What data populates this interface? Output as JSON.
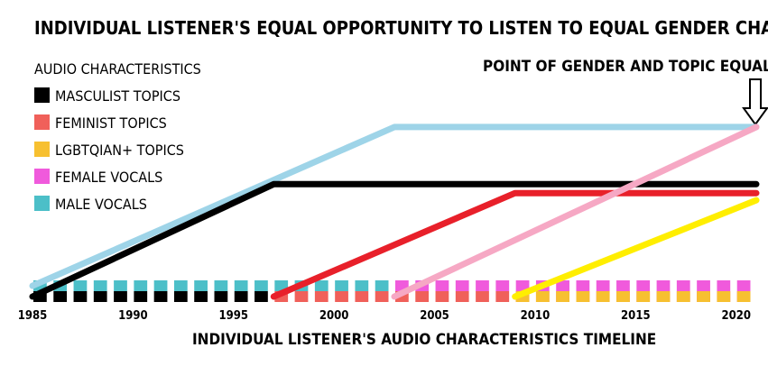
{
  "chart_data": {
    "type": "line",
    "title": "INDIVIDUAL LISTENER'S EQUAL OPPORTUNITY TO LISTEN TO EQUAL GENDER CHARACTERISTICS",
    "xlabel": "INDIVIDUAL LISTENER'S AUDIO CHARACTERISTICS TIMELINE",
    "ylabel": "",
    "xlim": [
      1985,
      2021
    ],
    "ylim": [
      0,
      10
    ],
    "x_ticks": [
      "1985",
      "1990",
      "1995",
      "2000",
      "2005",
      "2010",
      "2015",
      "2020"
    ],
    "legend_title": "AUDIO CHARACTERISTICS",
    "legend_position": "top-left",
    "annotation": "POINT OF GENDER AND TOPIC EQUALITY",
    "series": [
      {
        "name": "MASCULIST TOPICS",
        "color": "#000000",
        "line_color": "#000000",
        "points": [
          [
            1985,
            0
          ],
          [
            1997,
            6.3
          ],
          [
            2021,
            6.3
          ]
        ],
        "timeline": [
          1985,
          1997
        ]
      },
      {
        "name": "FEMINIST TOPICS",
        "color": "#f0605a",
        "line_color": "#e8202a",
        "points": [
          [
            1997,
            0
          ],
          [
            2009,
            5.8
          ],
          [
            2021,
            5.8
          ]
        ],
        "timeline": [
          1997,
          2021
        ]
      },
      {
        "name": "LGBTQIAN+ TOPICS",
        "color": "#f7c030",
        "line_color": "#ffee00",
        "points": [
          [
            2009,
            0
          ],
          [
            2021,
            5.4
          ]
        ],
        "timeline": [
          2009,
          2021
        ]
      },
      {
        "name": "FEMALE VOCALS",
        "color": "#f05adc",
        "line_color": "#f6a8c4",
        "points": [
          [
            2003,
            0
          ],
          [
            2021,
            9.5
          ]
        ],
        "timeline": [
          2003,
          2021
        ]
      },
      {
        "name": "MALE VOCALS",
        "color": "#4cbfc8",
        "line_color": "#9ed4e8",
        "points": [
          [
            1985,
            0.6
          ],
          [
            2003,
            9.5
          ],
          [
            2021,
            9.5
          ]
        ],
        "timeline": [
          1985,
          2003
        ]
      }
    ]
  }
}
